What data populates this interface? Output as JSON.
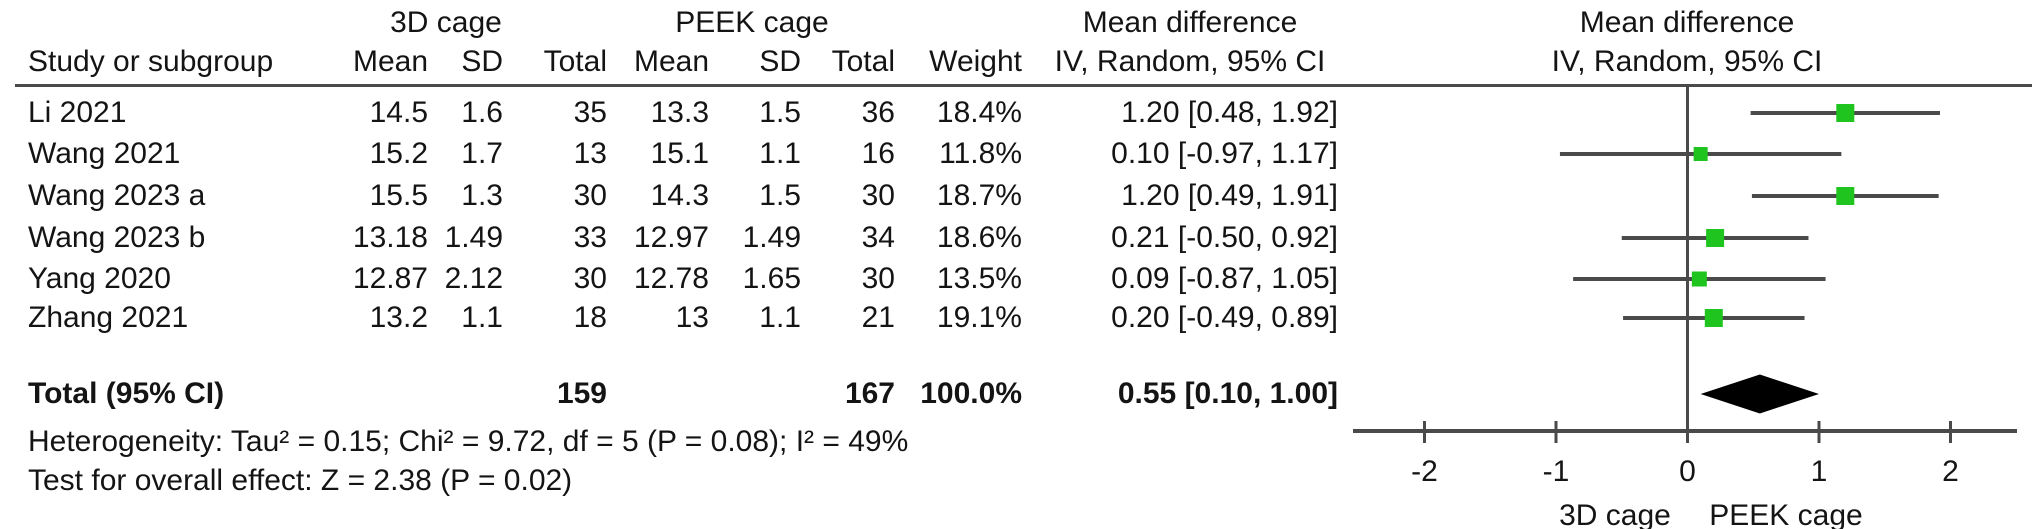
{
  "header": {
    "study_col": "Study or subgroup",
    "group1": "3D cage",
    "group2": "PEEK cage",
    "mean": "Mean",
    "sd": "SD",
    "total": "Total",
    "weight": "Weight",
    "mean_diff_col": "Mean difference",
    "iv_random_col": "IV, Random, 95% CI",
    "mean_diff_plot": "Mean difference",
    "iv_random_plot": "IV, Random, 95% CI"
  },
  "studies": [
    {
      "name": "Li 2021",
      "mean1": "14.5",
      "sd1": "1.6",
      "n1": "35",
      "mean2": "13.3",
      "sd2": "1.5",
      "n2": "36",
      "weight": "18.4%",
      "ci": "1.20 [0.48, 1.92]",
      "est": 1.2,
      "lo": 0.48,
      "hi": 1.92,
      "w": 18.4
    },
    {
      "name": "Wang 2021",
      "mean1": "15.2",
      "sd1": "1.7",
      "n1": "13",
      "mean2": "15.1",
      "sd2": "1.1",
      "n2": "16",
      "weight": "11.8%",
      "ci": "0.10 [-0.97, 1.17]",
      "est": 0.1,
      "lo": -0.97,
      "hi": 1.17,
      "w": 11.8
    },
    {
      "name": "Wang 2023 a",
      "mean1": "15.5",
      "sd1": "1.3",
      "n1": "30",
      "mean2": "14.3",
      "sd2": "1.5",
      "n2": "30",
      "weight": "18.7%",
      "ci": "1.20 [0.49, 1.91]",
      "est": 1.2,
      "lo": 0.49,
      "hi": 1.91,
      "w": 18.7
    },
    {
      "name": "Wang 2023 b",
      "mean1": "13.18",
      "sd1": "1.49",
      "n1": "33",
      "mean2": "12.97",
      "sd2": "1.49",
      "n2": "34",
      "weight": "18.6%",
      "ci": "0.21 [-0.50, 0.92]",
      "est": 0.21,
      "lo": -0.5,
      "hi": 0.92,
      "w": 18.6
    },
    {
      "name": "Yang 2020",
      "mean1": "12.87",
      "sd1": "2.12",
      "n1": "30",
      "mean2": "12.78",
      "sd2": "1.65",
      "n2": "30",
      "weight": "13.5%",
      "ci": "0.09 [-0.87, 1.05]",
      "est": 0.09,
      "lo": -0.87,
      "hi": 1.05,
      "w": 13.5
    },
    {
      "name": "Zhang 2021",
      "mean1": "13.2",
      "sd1": "1.1",
      "n1": "18",
      "mean2": "13",
      "sd2": "1.1",
      "n2": "21",
      "weight": "19.1%",
      "ci": "0.20 [-0.49, 0.89]",
      "est": 0.2,
      "lo": -0.49,
      "hi": 0.89,
      "w": 19.1
    }
  ],
  "total": {
    "label": "Total (95% CI)",
    "n1": "159",
    "n2": "167",
    "weight": "100.0%",
    "ci": "0.55 [0.10, 1.00]",
    "est": 0.55,
    "lo": 0.1,
    "hi": 1.0
  },
  "footnotes": {
    "heterogeneity": "Heterogeneity: Tau² = 0.15; Chi² = 9.72, df = 5 (P = 0.08); I² = 49%",
    "overall_effect": "Test for overall effect: Z = 2.38 (P = 0.02)"
  },
  "axis": {
    "ticks": [
      "-2",
      "-1",
      "0",
      "1",
      "2"
    ],
    "tick_values": [
      -2,
      -1,
      0,
      1,
      2
    ],
    "left_label": "3D cage",
    "right_label": "PEEK cage"
  },
  "colors": {
    "marker_green": "#1fc41f",
    "diamond_black": "#000000",
    "line_gray": "#4a4a4a"
  },
  "chart_data": {
    "type": "scatter",
    "subtype": "forest-plot-meta-analysis",
    "title": "Mean difference, IV, Random, 95% CI",
    "effect_measure": "Mean difference",
    "model": "IV, Random, 95% CI",
    "xlim": [
      -2.55,
      2.5
    ],
    "x_ticks": [
      -2,
      -1,
      0,
      1,
      2
    ],
    "xlabel_left_of_null": "3D cage",
    "xlabel_right_of_null": "PEEK cage",
    "grid": false,
    "series": [
      {
        "name": "Li 2021",
        "group1_mean": 14.5,
        "group1_sd": 1.6,
        "group1_n": 35,
        "group2_mean": 13.3,
        "group2_sd": 1.5,
        "group2_n": 36,
        "weight_pct": 18.4,
        "mean_diff": 1.2,
        "ci_low": 0.48,
        "ci_high": 1.92
      },
      {
        "name": "Wang 2021",
        "group1_mean": 15.2,
        "group1_sd": 1.7,
        "group1_n": 13,
        "group2_mean": 15.1,
        "group2_sd": 1.1,
        "group2_n": 16,
        "weight_pct": 11.8,
        "mean_diff": 0.1,
        "ci_low": -0.97,
        "ci_high": 1.17
      },
      {
        "name": "Wang 2023 a",
        "group1_mean": 15.5,
        "group1_sd": 1.3,
        "group1_n": 30,
        "group2_mean": 14.3,
        "group2_sd": 1.5,
        "group2_n": 30,
        "weight_pct": 18.7,
        "mean_diff": 1.2,
        "ci_low": 0.49,
        "ci_high": 1.91
      },
      {
        "name": "Wang 2023 b",
        "group1_mean": 13.18,
        "group1_sd": 1.49,
        "group1_n": 33,
        "group2_mean": 12.97,
        "group2_sd": 1.49,
        "group2_n": 34,
        "weight_pct": 18.6,
        "mean_diff": 0.21,
        "ci_low": -0.5,
        "ci_high": 0.92
      },
      {
        "name": "Yang 2020",
        "group1_mean": 12.87,
        "group1_sd": 2.12,
        "group1_n": 30,
        "group2_mean": 12.78,
        "group2_sd": 1.65,
        "group2_n": 30,
        "weight_pct": 13.5,
        "mean_diff": 0.09,
        "ci_low": -0.87,
        "ci_high": 1.05
      },
      {
        "name": "Zhang 2021",
        "group1_mean": 13.2,
        "group1_sd": 1.1,
        "group1_n": 18,
        "group2_mean": 13,
        "group2_sd": 1.1,
        "group2_n": 21,
        "weight_pct": 19.1,
        "mean_diff": 0.2,
        "ci_low": -0.49,
        "ci_high": 0.89
      }
    ],
    "pooled": {
      "name": "Total (95% CI)",
      "group1_n": 159,
      "group2_n": 167,
      "weight_pct": 100.0,
      "mean_diff": 0.55,
      "ci_low": 0.1,
      "ci_high": 1.0
    },
    "heterogeneity": {
      "tau2": 0.15,
      "chi2": 9.72,
      "df": 5,
      "p": 0.08,
      "i2_pct": 49
    },
    "overall_effect": {
      "z": 2.38,
      "p": 0.02
    }
  }
}
